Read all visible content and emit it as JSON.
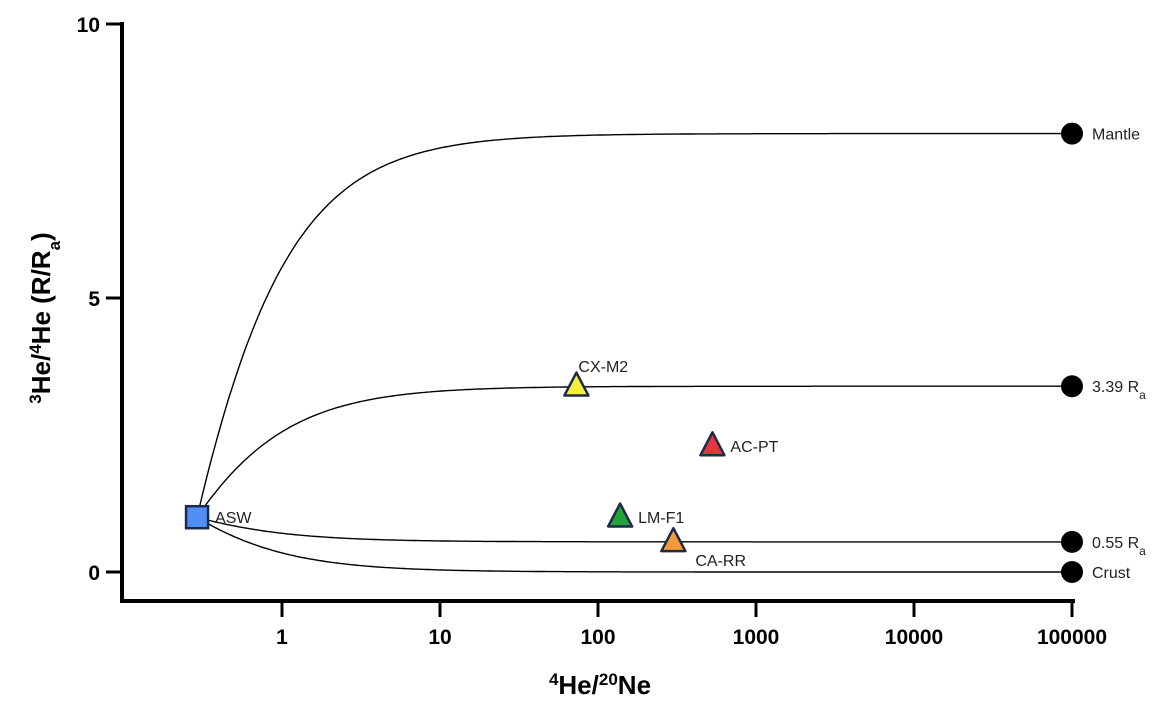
{
  "chart_data": {
    "type": "scatter",
    "x_scale": "log",
    "x_ticks": [
      "1",
      "10",
      "100",
      "1000",
      "10000",
      "100000"
    ],
    "y_ticks": [
      "0",
      "5",
      "10"
    ],
    "xlim": [
      0.1,
      100000
    ],
    "ylim": [
      0,
      10
    ],
    "xlabel": {
      "base1": "He/",
      "sup1": "4",
      "sup2": "20",
      "base2": "Ne"
    },
    "ylabel": {
      "sup1": "3",
      "base1": "He/",
      "sup2": "4",
      "base2": "He (R/R",
      "sub": "a",
      "end": ")"
    },
    "mixing_curves": [
      {
        "endmember": "Mantle",
        "y_end": 8.0
      },
      {
        "endmember": "3.39 R",
        "sub": "a",
        "y_end": 3.39
      },
      {
        "endmember": "0.55 R",
        "sub": "a",
        "y_end": 0.55
      },
      {
        "endmember": "Crust",
        "y_end": 0.0
      }
    ],
    "asw": {
      "name": "ASW",
      "x": 0.29,
      "y": 1.0,
      "color": "#4f8ff5"
    },
    "samples": [
      {
        "name": "CX-M2",
        "x": 73,
        "y": 3.39,
        "color": "#f4ef3c"
      },
      {
        "name": "AC-PT",
        "x": 530,
        "y": 2.3,
        "color": "#e8343c"
      },
      {
        "name": "LM-F1",
        "x": 138,
        "y": 1.0,
        "color": "#22a33a"
      },
      {
        "name": "CA-RR",
        "x": 300,
        "y": 0.55,
        "color": "#f39a3d"
      }
    ],
    "endmember_x": 100000,
    "legend": "none",
    "grid": false
  }
}
